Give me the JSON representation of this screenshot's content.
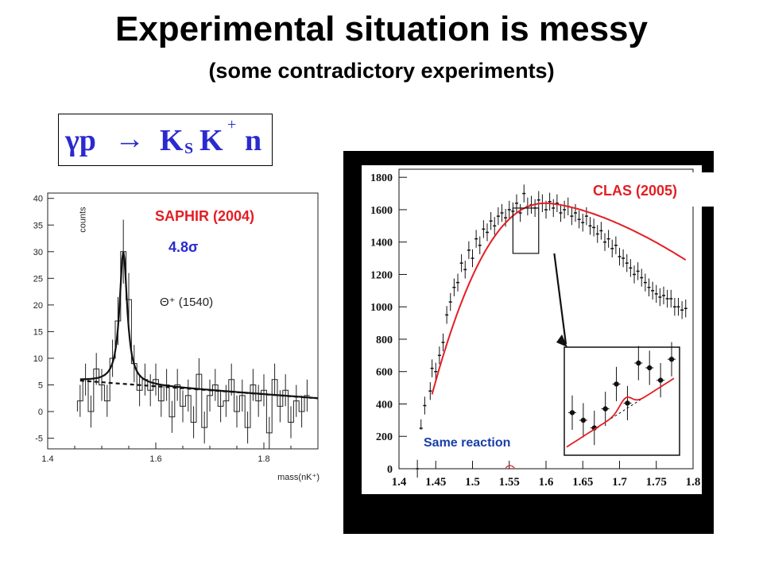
{
  "slide": {
    "title": "Experimental situation is messy",
    "subtitle": "(some contradictory experiments)"
  },
  "formula": {
    "gamma_p": "γp",
    "arrow": "→",
    "k": "K",
    "sub_s": "S",
    "k2": "K",
    "sup_plus": "+",
    "n": "n"
  },
  "colors": {
    "text": "#000000",
    "formula": "#2a2ad0",
    "label_red": "#e31e24",
    "sigma_blue": "#2a2ad0",
    "same_reaction": "#1a3ea8",
    "fit_red": "#e31e24",
    "panel_bg": "#000000"
  },
  "chart_data": [
    {
      "type": "line",
      "panel": "SAPHIR",
      "label": "SAPHIR (2004)",
      "significance": "4.8σ",
      "peak_label": "Θ⁺ (1540)",
      "xlabel": "mass(nK⁺)",
      "ylabel": "counts",
      "xlim": [
        1.4,
        1.9
      ],
      "ylim": [
        -7,
        41
      ],
      "x_ticks": [
        "1.4",
        "1.6",
        "1.8"
      ],
      "y_ticks": [
        "-5",
        "0",
        "5",
        "10",
        "15",
        "20",
        "25",
        "30",
        "35",
        "40"
      ],
      "histogram": {
        "x": [
          1.46,
          1.47,
          1.48,
          1.49,
          1.5,
          1.51,
          1.52,
          1.53,
          1.54,
          1.55,
          1.56,
          1.57,
          1.58,
          1.59,
          1.6,
          1.61,
          1.62,
          1.63,
          1.64,
          1.65,
          1.66,
          1.67,
          1.68,
          1.69,
          1.7,
          1.71,
          1.72,
          1.73,
          1.74,
          1.75,
          1.76,
          1.77,
          1.78,
          1.79,
          1.8,
          1.81,
          1.82,
          1.83,
          1.84,
          1.85,
          1.86,
          1.87,
          1.88
        ],
        "y": [
          2,
          6,
          0,
          8,
          5,
          2,
          10,
          17,
          30,
          21,
          9,
          4,
          6,
          4,
          6,
          2,
          5,
          -1,
          5,
          1,
          3,
          -2,
          7,
          -3,
          3,
          5,
          1,
          2,
          6,
          0,
          3,
          -3,
          5,
          2,
          4,
          -4,
          6,
          1,
          4,
          -2,
          2,
          0,
          3
        ],
        "errors": [
          3,
          3,
          3,
          3,
          3,
          3,
          3.5,
          4.5,
          6,
          5,
          3.5,
          3,
          3,
          3,
          3,
          3,
          3,
          3,
          3,
          3,
          3,
          3,
          3,
          3,
          3,
          3,
          3,
          3,
          3,
          3,
          3,
          3,
          3,
          3,
          3,
          3,
          3,
          3,
          3,
          3,
          3,
          3,
          3
        ]
      },
      "background_fit": "dashed",
      "signal_fit": "solid",
      "fit_params": {
        "b0": 5.8,
        "b1": -7.5,
        "peak_mass": 1.54,
        "peak_height": 24.8,
        "width": 0.0085
      }
    },
    {
      "type": "scatter",
      "panel": "CLAS",
      "label": "CLAS (2005)",
      "annotation": "Same reaction",
      "xlim": [
        1.4,
        1.8
      ],
      "ylim": [
        0,
        1850
      ],
      "x_ticks": [
        "1.4",
        "1.45",
        "1.5",
        "1.55",
        "1.6",
        "1.65",
        "1.7",
        "1.75",
        "1.8"
      ],
      "y_ticks": [
        "0",
        "200",
        "400",
        "600",
        "800",
        "1000",
        "1200",
        "1400",
        "1600",
        "1800"
      ],
      "points": {
        "x": [
          1.425,
          1.43,
          1.435,
          1.4425,
          1.445,
          1.45,
          1.455,
          1.46,
          1.465,
          1.47,
          1.475,
          1.48,
          1.485,
          1.49,
          1.495,
          1.5,
          1.505,
          1.51,
          1.515,
          1.52,
          1.525,
          1.53,
          1.535,
          1.54,
          1.545,
          1.55,
          1.555,
          1.56,
          1.565,
          1.57,
          1.575,
          1.58,
          1.585,
          1.59,
          1.595,
          1.6,
          1.605,
          1.61,
          1.615,
          1.62,
          1.625,
          1.63,
          1.635,
          1.64,
          1.645,
          1.65,
          1.655,
          1.66,
          1.665,
          1.67,
          1.675,
          1.68,
          1.685,
          1.69,
          1.695,
          1.7,
          1.705,
          1.71,
          1.715,
          1.72,
          1.725,
          1.73,
          1.735,
          1.74,
          1.745,
          1.75,
          1.755,
          1.76,
          1.765,
          1.77,
          1.775,
          1.78,
          1.785,
          1.79
        ],
        "y": [
          0,
          250,
          390,
          480,
          620,
          600,
          700,
          780,
          950,
          1030,
          1120,
          1150,
          1270,
          1230,
          1350,
          1300,
          1420,
          1380,
          1480,
          1460,
          1530,
          1500,
          1560,
          1580,
          1550,
          1600,
          1590,
          1640,
          1580,
          1700,
          1620,
          1630,
          1610,
          1660,
          1640,
          1600,
          1650,
          1610,
          1640,
          1580,
          1600,
          1620,
          1560,
          1580,
          1540,
          1520,
          1560,
          1500,
          1490,
          1450,
          1470,
          1400,
          1420,
          1360,
          1380,
          1310,
          1300,
          1270,
          1240,
          1200,
          1220,
          1180,
          1150,
          1120,
          1100,
          1080,
          1060,
          1070,
          1050,
          1050,
          1000,
          1000,
          980,
          990
        ],
        "errors": 55
      },
      "fit_curve": "smooth",
      "zoom_window": {
        "x": [
          1.555,
          1.59
        ],
        "y": [
          1330,
          1610
        ]
      },
      "inset_points": {
        "x": [
          1,
          2,
          3,
          4,
          5,
          6,
          7,
          8,
          9,
          10
        ],
        "y": [
          0.38,
          0.3,
          0.22,
          0.42,
          0.68,
          0.48,
          0.9,
          0.85,
          0.72,
          0.94
        ],
        "errors": 0.18
      }
    }
  ]
}
